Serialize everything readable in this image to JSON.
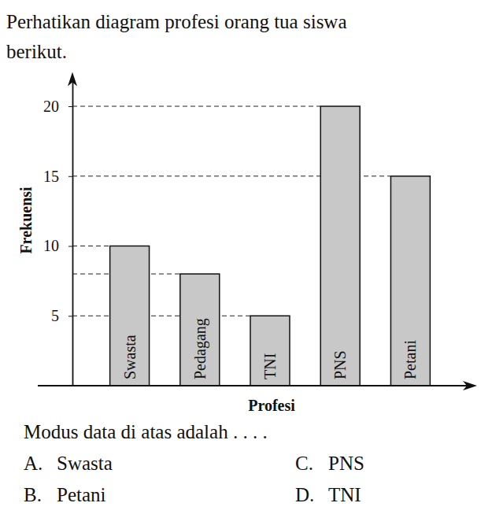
{
  "intro": [
    "Perhatikan diagram profesi orang tua siswa",
    "berikut."
  ],
  "chart_data": {
    "type": "bar",
    "x_label": "Profesi",
    "y_label": "Frekuensi",
    "categories": [
      "Swasta",
      "Pedagang",
      "TNI",
      "PNS",
      "Petani"
    ],
    "values": [
      10,
      8,
      5,
      20,
      15
    ],
    "color": "#c8c8c8",
    "ylim": [
      0,
      22
    ],
    "yticks": [
      5,
      10,
      15,
      20
    ],
    "tick_labels": "y"
  },
  "prompt": "Modus data di atas adalah . . . .",
  "options": [
    {
      "letter": "A.",
      "text": "Swasta"
    },
    {
      "letter": "B.",
      "text": "Petani"
    },
    {
      "letter": "C.",
      "text": "PNS"
    },
    {
      "letter": "D.",
      "text": "TNI"
    }
  ]
}
